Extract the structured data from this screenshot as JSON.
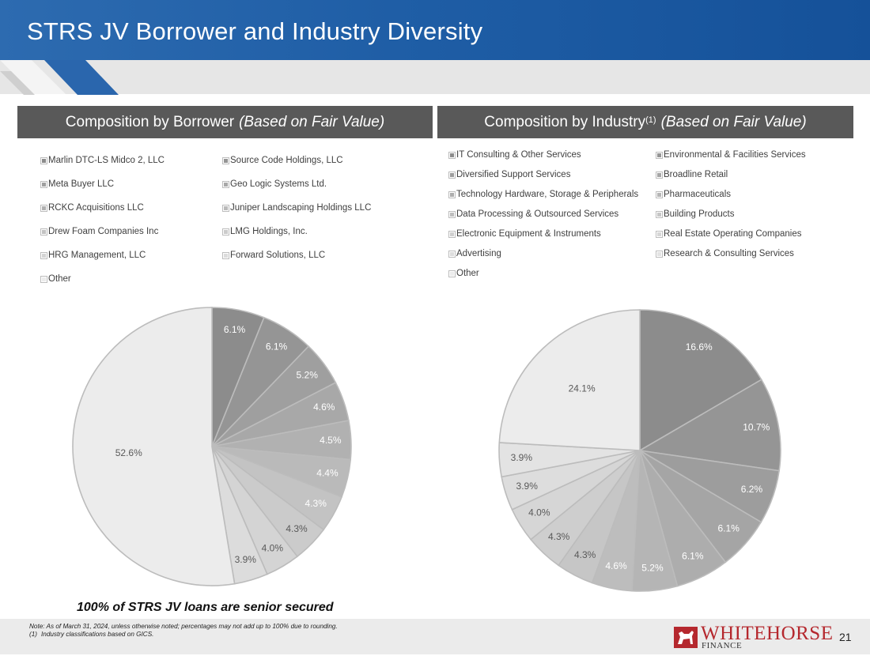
{
  "header": {
    "title": "STRS JV Borrower and Industry Diversity"
  },
  "left_panel": {
    "title": "Composition by Borrower",
    "subtitle": "(Based on Fair Value)",
    "legend": [
      "Marlin DTC-LS Midco 2, LLC",
      "Source Code Holdings, LLC",
      "Meta Buyer LLC",
      "Geo Logic Systems Ltd.",
      "RCKC Acquisitions LLC",
      "Juniper Landscaping Holdings LLC",
      "Drew Foam Companies Inc",
      "LMG Holdings, Inc.",
      "HRG Management, LLC",
      "Forward Solutions, LLC",
      "Other"
    ]
  },
  "right_panel": {
    "title": "Composition by Industry",
    "title_sup": "(1)",
    "subtitle": "(Based on Fair Value)",
    "legend": [
      "IT Consulting & Other Services",
      "Environmental & Facilities Services",
      "Diversified Support Services",
      "Broadline Retail",
      "Technology Hardware, Storage & Peripherals",
      "Pharmaceuticals",
      "Data Processing & Outsourced Services",
      "Building Products",
      "Electronic Equipment & Instruments",
      "Real Estate Operating Companies",
      "Advertising",
      "Research & Consulting Services",
      "Other"
    ]
  },
  "chart_data": [
    {
      "type": "pie",
      "title": "Composition by Borrower (Based on Fair Value)",
      "categories": [
        "Marlin DTC-LS Midco 2, LLC",
        "Source Code Holdings, LLC",
        "Meta Buyer LLC",
        "Geo Logic Systems Ltd.",
        "RCKC Acquisitions LLC",
        "Juniper Landscaping Holdings LLC",
        "Drew Foam Companies Inc",
        "LMG Holdings, Inc.",
        "HRG Management, LLC",
        "Forward Solutions, LLC",
        "Other"
      ],
      "values": [
        6.1,
        6.1,
        5.2,
        4.6,
        4.5,
        4.4,
        4.3,
        4.3,
        4.0,
        3.9,
        52.6
      ],
      "labels": [
        "6.1%",
        "6.1%",
        "5.2%",
        "4.6%",
        "4.5%",
        "4.4%",
        "4.3%",
        "4.3%",
        "4.0%",
        "3.9%",
        "52.6%"
      ],
      "colors": [
        "#8c8c8c",
        "#959595",
        "#9f9f9f",
        "#a8a8a8",
        "#b1b1b1",
        "#bababa",
        "#c3c3c3",
        "#cbcbcb",
        "#d4d4d4",
        "#dcdcdc",
        "#ececec"
      ],
      "label_colors": [
        "#ffffff",
        "#ffffff",
        "#ffffff",
        "#ffffff",
        "#ffffff",
        "#ffffff",
        "#ffffff",
        "#595959",
        "#595959",
        "#595959",
        "#595959"
      ]
    },
    {
      "type": "pie",
      "title": "Composition by Industry (Based on Fair Value)",
      "categories": [
        "IT Consulting & Other Services",
        "Environmental & Facilities Services",
        "Diversified Support Services",
        "Broadline Retail",
        "Technology Hardware, Storage & Peripherals",
        "Pharmaceuticals",
        "Data Processing & Outsourced Services",
        "Building Products",
        "Electronic Equipment & Instruments",
        "Real Estate Operating Companies",
        "Advertising",
        "Research & Consulting Services",
        "Other"
      ],
      "values": [
        16.6,
        10.7,
        6.2,
        6.1,
        6.1,
        5.2,
        4.6,
        4.3,
        4.3,
        4.0,
        3.9,
        3.9,
        24.1
      ],
      "labels": [
        "16.6%",
        "10.7%",
        "6.2%",
        "6.1%",
        "6.1%",
        "5.2%",
        "4.6%",
        "4.3%",
        "4.3%",
        "4.0%",
        "3.9%",
        "3.9%",
        "24.1%"
      ],
      "colors": [
        "#8c8c8c",
        "#959595",
        "#9d9d9d",
        "#a5a5a5",
        "#adadad",
        "#b5b5b5",
        "#bdbdbd",
        "#c6c6c6",
        "#cecece",
        "#d6d6d6",
        "#dddddd",
        "#e3e3e3",
        "#ececec"
      ],
      "label_colors": [
        "#ffffff",
        "#ffffff",
        "#ffffff",
        "#ffffff",
        "#ffffff",
        "#ffffff",
        "#ffffff",
        "#595959",
        "#595959",
        "#595959",
        "#595959",
        "#595959",
        "#595959"
      ]
    }
  ],
  "caption": "100% of STRS JV loans are senior secured",
  "footer": {
    "note_line1": "Note: As of March 31, 2024, unless otherwise noted; percentages may not add up to 100% due to rounding.",
    "note2_num": "(1)",
    "note_line2": "Industry classifications based on GICS.",
    "logo_main": "WHITEHORSE",
    "logo_sub": "FINANCE",
    "page_number": "21"
  },
  "colors": {
    "brand_blue": "#1f5ea6",
    "header_gray": "#595959",
    "logo_red": "#b5282e"
  }
}
